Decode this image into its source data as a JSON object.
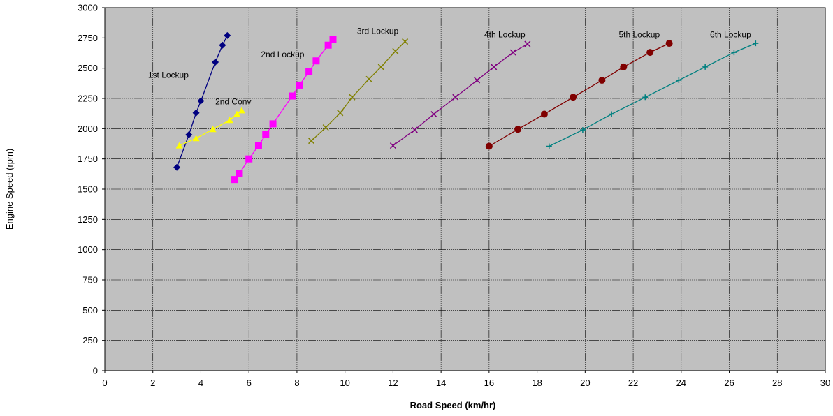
{
  "chart_data": {
    "type": "line",
    "title": "",
    "xlabel": "Road Speed (km/hr)",
    "ylabel": "Engine Speed (rpm)",
    "xlim": [
      0,
      30
    ],
    "ylim": [
      0,
      3000
    ],
    "x_ticks": [
      0,
      2,
      4,
      6,
      8,
      10,
      12,
      14,
      16,
      18,
      20,
      22,
      24,
      26,
      28,
      30
    ],
    "y_ticks": [
      0,
      250,
      500,
      750,
      1000,
      1250,
      1500,
      1750,
      2000,
      2250,
      2500,
      2750,
      3000
    ],
    "grid": true,
    "plot_background": "#c0c0c0",
    "series": [
      {
        "name": "1st Lockup",
        "color": "#000080",
        "marker": "diamond",
        "points": [
          [
            3.0,
            1680
          ],
          [
            3.5,
            1950
          ],
          [
            3.8,
            2130
          ],
          [
            4.0,
            2230
          ],
          [
            4.6,
            2550
          ],
          [
            4.9,
            2690
          ],
          [
            5.1,
            2770
          ]
        ]
      },
      {
        "name": "2nd Conv",
        "color": "#ffff00",
        "marker": "triangle",
        "points": [
          [
            3.1,
            1860
          ],
          [
            3.8,
            1920
          ],
          [
            4.5,
            1995
          ],
          [
            5.2,
            2070
          ],
          [
            5.5,
            2120
          ],
          [
            5.7,
            2150
          ]
        ]
      },
      {
        "name": "2nd Lockup",
        "color": "#ff00ff",
        "marker": "square",
        "points": [
          [
            5.4,
            1580
          ],
          [
            5.6,
            1630
          ],
          [
            6.0,
            1750
          ],
          [
            6.4,
            1860
          ],
          [
            6.7,
            1950
          ],
          [
            7.0,
            2040
          ],
          [
            7.8,
            2270
          ],
          [
            8.1,
            2360
          ],
          [
            8.5,
            2470
          ],
          [
            8.8,
            2560
          ],
          [
            9.3,
            2690
          ],
          [
            9.5,
            2740
          ]
        ]
      },
      {
        "name": "3rd Lockup",
        "color": "#808000",
        "marker": "x",
        "points": [
          [
            8.6,
            1900
          ],
          [
            9.2,
            2010
          ],
          [
            9.8,
            2130
          ],
          [
            10.3,
            2260
          ],
          [
            11.0,
            2410
          ],
          [
            11.5,
            2510
          ],
          [
            12.1,
            2640
          ],
          [
            12.5,
            2720
          ]
        ]
      },
      {
        "name": "4th Lockup",
        "color": "#800080",
        "marker": "x",
        "points": [
          [
            12.0,
            1860
          ],
          [
            12.9,
            1990
          ],
          [
            13.7,
            2120
          ],
          [
            14.6,
            2260
          ],
          [
            15.5,
            2400
          ],
          [
            16.2,
            2510
          ],
          [
            17.0,
            2630
          ],
          [
            17.6,
            2700
          ]
        ]
      },
      {
        "name": "5th Lockup",
        "color": "#800000",
        "marker": "circle",
        "points": [
          [
            16.0,
            1855
          ],
          [
            17.2,
            1995
          ],
          [
            18.3,
            2120
          ],
          [
            19.5,
            2260
          ],
          [
            20.7,
            2400
          ],
          [
            21.6,
            2510
          ],
          [
            22.7,
            2630
          ],
          [
            23.5,
            2705
          ]
        ]
      },
      {
        "name": "6th Lockup",
        "color": "#008080",
        "marker": "plus",
        "points": [
          [
            18.5,
            1855
          ],
          [
            19.9,
            1990
          ],
          [
            21.1,
            2120
          ],
          [
            22.5,
            2260
          ],
          [
            23.9,
            2400
          ],
          [
            25.0,
            2510
          ],
          [
            26.2,
            2630
          ],
          [
            27.1,
            2705
          ]
        ]
      }
    ],
    "annotations": [
      {
        "text": "1st Lockup",
        "x": 1.8,
        "y": 2420
      },
      {
        "text": "2nd Conv",
        "x": 4.6,
        "y": 2200
      },
      {
        "text": "2nd Lockup",
        "x": 6.5,
        "y": 2590
      },
      {
        "text": "3rd Lockup",
        "x": 10.5,
        "y": 2785
      },
      {
        "text": "4th Lockup",
        "x": 15.8,
        "y": 2755
      },
      {
        "text": "5th Lockup",
        "x": 21.4,
        "y": 2755
      },
      {
        "text": "6th Lockup",
        "x": 25.2,
        "y": 2755
      }
    ]
  }
}
